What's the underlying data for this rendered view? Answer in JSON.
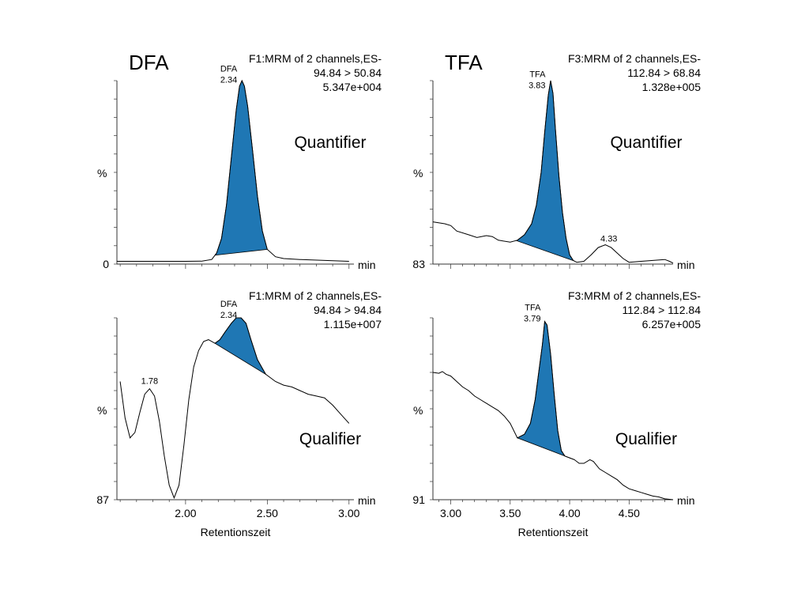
{
  "figure": {
    "colors": {
      "fill": "#1f77b4",
      "line": "#000000",
      "axis": "#333333"
    }
  },
  "chart_data": [
    {
      "type": "line",
      "title": "DFA",
      "subtitle": [
        "F1:MRM of 2 channels,ES-",
        "94.84 > 50.84",
        "5.347e+004"
      ],
      "annotation": "Quantifier",
      "ylabel": "%",
      "y_min_label": "0",
      "xunit": "min",
      "xlim": [
        1.58,
        3.03
      ],
      "peak": {
        "label": "DFA",
        "rt": "2.34",
        "x": 2.34,
        "x_start": 2.18,
        "x_end": 2.5
      },
      "other_labels": [],
      "series": [
        {
          "values": [
            [
              1.58,
              1.5
            ],
            [
              2.0,
              1.5
            ],
            [
              2.1,
              1.6
            ],
            [
              2.16,
              2.5
            ],
            [
              2.19,
              6
            ],
            [
              2.22,
              14
            ],
            [
              2.25,
              32
            ],
            [
              2.28,
              58
            ],
            [
              2.31,
              84
            ],
            [
              2.33,
              97
            ],
            [
              2.345,
              100
            ],
            [
              2.36,
              97
            ],
            [
              2.38,
              86
            ],
            [
              2.41,
              62
            ],
            [
              2.44,
              37
            ],
            [
              2.47,
              18
            ],
            [
              2.5,
              8
            ],
            [
              2.55,
              4
            ],
            [
              2.6,
              3
            ],
            [
              2.7,
              2.5
            ],
            [
              3.0,
              1.5
            ]
          ]
        }
      ]
    },
    {
      "type": "line",
      "title": "TFA",
      "subtitle": [
        "F3:MRM of 2 channels,ES-",
        "112.84 > 68.84",
        "1.328e+005"
      ],
      "annotation": "Quantifier",
      "ylabel": "%",
      "y_min_label": "83",
      "xunit": "min",
      "xlim": [
        2.85,
        4.87
      ],
      "peak": {
        "label": "TFA",
        "rt": "3.83",
        "x": 3.83,
        "x_start": 3.55,
        "x_end": 4.04
      },
      "other_labels": [
        {
          "text": "4.33",
          "x": 4.33
        }
      ],
      "series": [
        {
          "values": [
            [
              2.85,
              23
            ],
            [
              2.95,
              22
            ],
            [
              3.0,
              21
            ],
            [
              3.05,
              18
            ],
            [
              3.15,
              16
            ],
            [
              3.22,
              14.5
            ],
            [
              3.3,
              15.5
            ],
            [
              3.35,
              15
            ],
            [
              3.4,
              13
            ],
            [
              3.5,
              12
            ],
            [
              3.56,
              13
            ],
            [
              3.62,
              16
            ],
            [
              3.68,
              22
            ],
            [
              3.72,
              32
            ],
            [
              3.76,
              50
            ],
            [
              3.79,
              72
            ],
            [
              3.82,
              92
            ],
            [
              3.84,
              100
            ],
            [
              3.86,
              93
            ],
            [
              3.88,
              74
            ],
            [
              3.91,
              48
            ],
            [
              3.94,
              28
            ],
            [
              3.97,
              14
            ],
            [
              4.0,
              5
            ],
            [
              4.03,
              2
            ],
            [
              4.06,
              1
            ],
            [
              4.12,
              1.5
            ],
            [
              4.18,
              5
            ],
            [
              4.24,
              9
            ],
            [
              4.3,
              10.5
            ],
            [
              4.35,
              9
            ],
            [
              4.4,
              6
            ],
            [
              4.45,
              3
            ],
            [
              4.5,
              1
            ],
            [
              4.6,
              1.5
            ],
            [
              4.7,
              2
            ],
            [
              4.8,
              2.5
            ],
            [
              4.84,
              1.5
            ],
            [
              4.87,
              0.5
            ]
          ]
        }
      ]
    },
    {
      "type": "line",
      "title": "",
      "subtitle": [
        "F1:MRM of 2 channels,ES-",
        "94.84 > 94.84",
        "1.115e+007"
      ],
      "annotation": "Qualifier",
      "ylabel": "%",
      "y_min_label": "87",
      "xunit": "min",
      "xlim": [
        1.58,
        3.03
      ],
      "xticks": [
        "2.00",
        "2.50",
        "3.00"
      ],
      "xlabel": "Retentionszeit",
      "peak": {
        "label": "DFA",
        "rt": "2.34",
        "x": 2.34,
        "x_start": 2.18,
        "x_end": 2.49
      },
      "other_labels": [
        {
          "text": "1.78",
          "x": 1.78
        }
      ],
      "series": [
        {
          "values": [
            [
              1.6,
              65
            ],
            [
              1.63,
              45
            ],
            [
              1.66,
              34
            ],
            [
              1.69,
              37
            ],
            [
              1.72,
              48
            ],
            [
              1.75,
              58
            ],
            [
              1.78,
              61
            ],
            [
              1.81,
              57
            ],
            [
              1.84,
              43
            ],
            [
              1.87,
              24
            ],
            [
              1.9,
              8
            ],
            [
              1.93,
              1
            ],
            [
              1.96,
              8
            ],
            [
              1.99,
              30
            ],
            [
              2.02,
              55
            ],
            [
              2.05,
              73
            ],
            [
              2.08,
              82
            ],
            [
              2.11,
              87
            ],
            [
              2.14,
              88
            ],
            [
              2.18,
              86
            ],
            [
              2.21,
              88
            ],
            [
              2.24,
              92
            ],
            [
              2.28,
              97
            ],
            [
              2.31,
              100
            ],
            [
              2.34,
              100
            ],
            [
              2.37,
              97
            ],
            [
              2.4,
              88
            ],
            [
              2.44,
              77
            ],
            [
              2.49,
              69
            ],
            [
              2.55,
              65
            ],
            [
              2.6,
              63
            ],
            [
              2.65,
              62
            ],
            [
              2.7,
              60
            ],
            [
              2.75,
              58
            ],
            [
              2.8,
              57
            ],
            [
              2.85,
              56
            ],
            [
              2.9,
              52
            ],
            [
              2.95,
              47
            ],
            [
              3.0,
              42
            ]
          ]
        }
      ]
    },
    {
      "type": "line",
      "title": "",
      "subtitle": [
        "F3:MRM of 2 channels,ES-",
        "112.84 > 112.84",
        "6.257e+005"
      ],
      "annotation": "Qualifier",
      "ylabel": "%",
      "y_min_label": "91",
      "xunit": "min",
      "xlim": [
        2.85,
        4.87
      ],
      "xticks": [
        "3.00",
        "3.50",
        "4.00",
        "4.50"
      ],
      "xlabel": "Retentionszeit",
      "peak": {
        "label": "TFA",
        "rt": "3.79",
        "x": 3.79,
        "x_start": 3.56,
        "x_end": 4.04
      },
      "other_labels": [],
      "series": [
        {
          "values": [
            [
              2.85,
              70
            ],
            [
              2.9,
              69.5
            ],
            [
              2.93,
              70.5
            ],
            [
              2.96,
              69
            ],
            [
              3.0,
              68
            ],
            [
              3.05,
              65
            ],
            [
              3.1,
              62
            ],
            [
              3.15,
              60
            ],
            [
              3.2,
              57
            ],
            [
              3.25,
              55
            ],
            [
              3.3,
              53
            ],
            [
              3.35,
              51
            ],
            [
              3.4,
              49
            ],
            [
              3.45,
              46
            ],
            [
              3.5,
              42
            ],
            [
              3.56,
              34
            ],
            [
              3.62,
              36
            ],
            [
              3.67,
              42
            ],
            [
              3.71,
              55
            ],
            [
              3.74,
              70
            ],
            [
              3.77,
              85
            ],
            [
              3.79,
              98
            ],
            [
              3.81,
              96
            ],
            [
              3.84,
              80
            ],
            [
              3.87,
              58
            ],
            [
              3.9,
              38
            ],
            [
              3.93,
              27
            ],
            [
              3.96,
              24
            ],
            [
              4.0,
              23
            ],
            [
              4.04,
              22
            ],
            [
              4.08,
              20
            ],
            [
              4.12,
              20
            ],
            [
              4.17,
              22
            ],
            [
              4.2,
              21
            ],
            [
              4.25,
              17
            ],
            [
              4.3,
              15
            ],
            [
              4.35,
              13
            ],
            [
              4.4,
              11
            ],
            [
              4.45,
              8
            ],
            [
              4.5,
              6
            ],
            [
              4.55,
              5
            ],
            [
              4.6,
              4
            ],
            [
              4.65,
              3
            ],
            [
              4.7,
              2
            ],
            [
              4.75,
              1.5
            ],
            [
              4.8,
              0.5
            ],
            [
              4.87,
              0
            ]
          ]
        }
      ]
    }
  ]
}
